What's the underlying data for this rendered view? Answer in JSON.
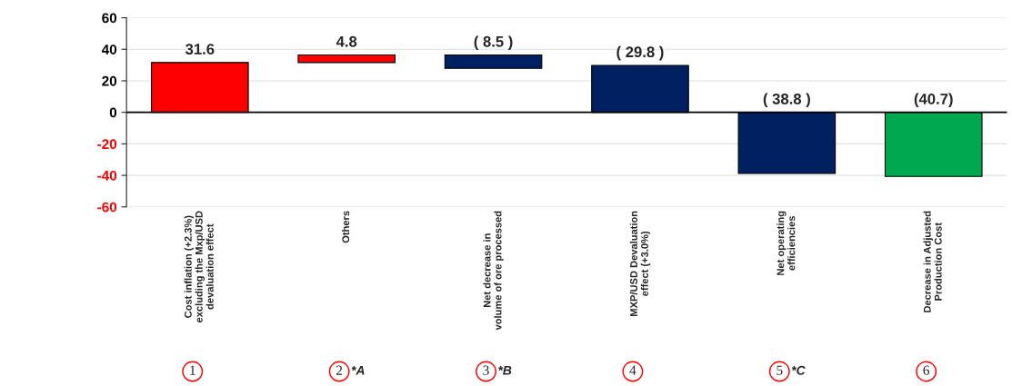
{
  "chart_data": {
    "type": "bar",
    "categories": [
      "Cost inflation (+2.3%)\nexcluding the Mxp/USD\ndevaluation effect",
      "Others",
      "Net decrease in\nvolume of ore processed",
      "MXP/USD Devaluation\neffect (+3.0%)",
      "Net operating\nefficiencies",
      "Decrease in Adjusted\nProduction Cost"
    ],
    "values": [
      31.6,
      4.8,
      -8.5,
      29.8,
      -38.8,
      -40.7
    ],
    "base": [
      0,
      31.6,
      36.4,
      0,
      0,
      0
    ],
    "colors": [
      "#ff0000",
      "#ff0000",
      "#002060",
      "#002060",
      "#002060",
      "#00a84f"
    ],
    "value_labels": [
      "31.6",
      "4.8",
      "( 8.5 )",
      "( 29.8 )",
      "( 38.8 )",
      "(40.7)"
    ],
    "ylim": [
      -60,
      60
    ],
    "yticks": [
      -60,
      -40,
      -20,
      0,
      20,
      40,
      60
    ],
    "grid": "y",
    "legend": false,
    "annotations": [
      "1",
      "2 *A",
      "3 *B",
      "4",
      "5 *C",
      "6"
    ]
  }
}
